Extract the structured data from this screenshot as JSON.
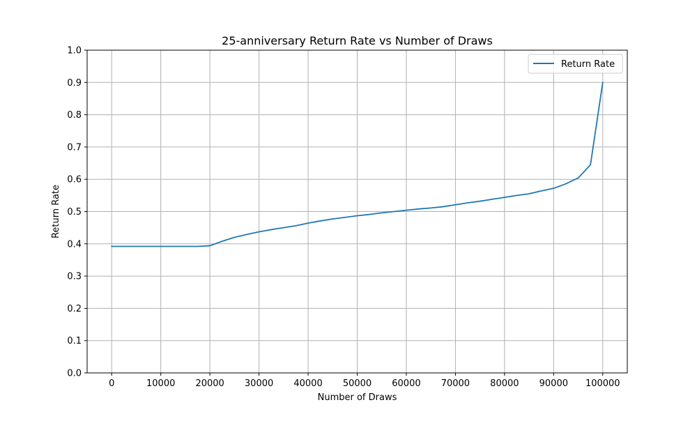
{
  "chart_data": {
    "type": "line",
    "title": "25-anniversary Return Rate vs Number of Draws",
    "xlabel": "Number of Draws",
    "ylabel": "Return Rate",
    "xlim": [
      -5000,
      105000
    ],
    "ylim": [
      0.0,
      1.0
    ],
    "xticks": [
      0,
      10000,
      20000,
      30000,
      40000,
      50000,
      60000,
      70000,
      80000,
      90000,
      100000
    ],
    "yticks": [
      0.0,
      0.1,
      0.2,
      0.3,
      0.4,
      0.5,
      0.6,
      0.7,
      0.8,
      0.9,
      1.0
    ],
    "grid": true,
    "legend_position": "top-right",
    "series": [
      {
        "name": "Return Rate",
        "color": "#1f77b4",
        "x": [
          0,
          5000,
          10000,
          15000,
          17500,
          20000,
          22500,
          25000,
          27500,
          30000,
          32500,
          35000,
          37500,
          40000,
          42500,
          45000,
          47500,
          50000,
          52500,
          55000,
          57500,
          60000,
          62500,
          65000,
          67500,
          70000,
          72500,
          75000,
          77500,
          80000,
          82500,
          85000,
          87500,
          90000,
          92500,
          95000,
          97500,
          100000
        ],
        "y": [
          0.392,
          0.392,
          0.392,
          0.392,
          0.392,
          0.394,
          0.408,
          0.42,
          0.429,
          0.437,
          0.444,
          0.45,
          0.456,
          0.464,
          0.471,
          0.477,
          0.482,
          0.487,
          0.491,
          0.496,
          0.5,
          0.504,
          0.508,
          0.511,
          0.515,
          0.521,
          0.527,
          0.532,
          0.538,
          0.544,
          0.55,
          0.555,
          0.564,
          0.572,
          0.586,
          0.604,
          0.645,
          0.9
        ]
      }
    ]
  }
}
